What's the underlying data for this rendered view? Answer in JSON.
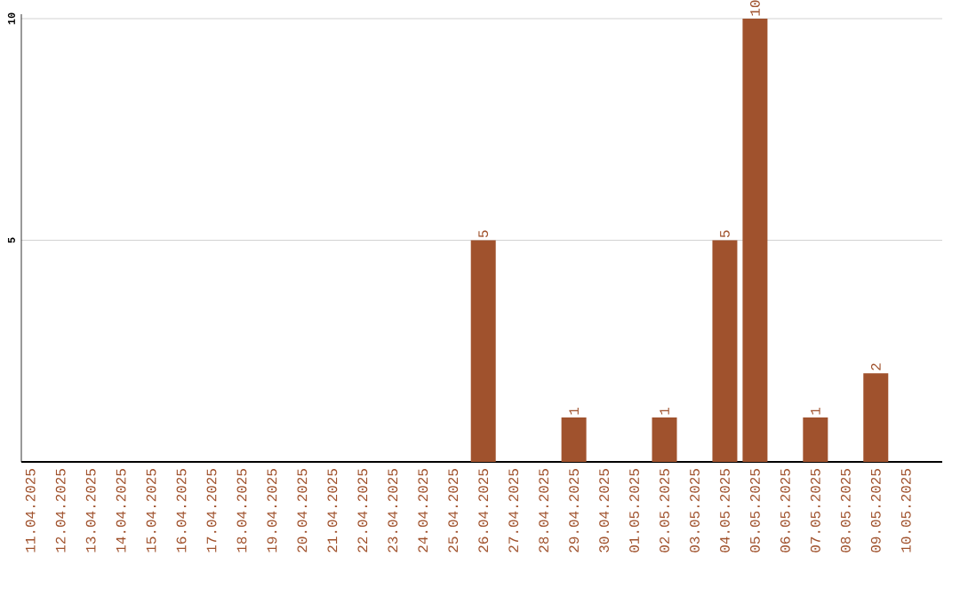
{
  "chart_data": {
    "type": "bar",
    "categories": [
      "11.04.2025",
      "12.04.2025",
      "13.04.2025",
      "14.04.2025",
      "15.04.2025",
      "16.04.2025",
      "17.04.2025",
      "18.04.2025",
      "19.04.2025",
      "20.04.2025",
      "21.04.2025",
      "22.04.2025",
      "23.04.2025",
      "24.04.2025",
      "25.04.2025",
      "26.04.2025",
      "27.04.2025",
      "28.04.2025",
      "29.04.2025",
      "30.04.2025",
      "01.05.2025",
      "02.05.2025",
      "03.05.2025",
      "04.05.2025",
      "05.05.2025",
      "06.05.2025",
      "07.05.2025",
      "08.05.2025",
      "09.05.2025",
      "10.05.2025"
    ],
    "values": [
      0,
      0,
      0,
      0,
      0,
      0,
      0,
      0,
      0,
      0,
      0,
      0,
      0,
      0,
      0,
      5,
      0,
      0,
      1,
      0,
      0,
      1,
      0,
      5,
      10,
      0,
      1,
      0,
      2,
      0
    ],
    "value_labels": [
      null,
      null,
      null,
      null,
      null,
      null,
      null,
      null,
      null,
      null,
      null,
      null,
      null,
      null,
      null,
      "5",
      null,
      null,
      "1",
      null,
      null,
      "1",
      null,
      "5",
      "10",
      null,
      "1",
      null,
      "2",
      null
    ],
    "color": "#a0522d",
    "ylim": [
      0,
      10.1
    ],
    "yticks": [
      5,
      10
    ],
    "grid": "y"
  }
}
